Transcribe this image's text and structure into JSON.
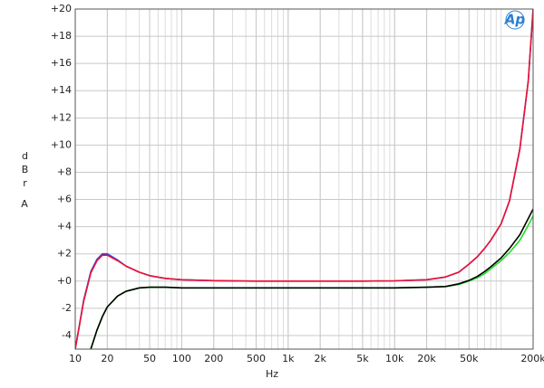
{
  "chart_data": {
    "type": "line",
    "xlabel": "Hz",
    "ylabel": "dBr",
    "ylabel_unit": "A",
    "logo": "Ap",
    "xscale": "log",
    "grid": true,
    "minor_grid": true,
    "xlim": [
      10,
      200000
    ],
    "ylim": [
      -5,
      20
    ],
    "xticks": [
      10,
      20,
      50,
      100,
      200,
      500,
      {
        "value": 1000,
        "label": "1k"
      },
      {
        "value": 2000,
        "label": "2k"
      },
      {
        "value": 5000,
        "label": "5k"
      },
      {
        "value": 10000,
        "label": "10k"
      },
      {
        "value": 20000,
        "label": "20k"
      },
      {
        "value": 50000,
        "label": "50k"
      },
      {
        "value": 200000,
        "label": "200k"
      }
    ],
    "yticks": [
      -4,
      -2,
      {
        "value": 0,
        "label": "+0"
      },
      {
        "value": 2,
        "label": "+2"
      },
      {
        "value": 4,
        "label": "+4"
      },
      {
        "value": 6,
        "label": "+6"
      },
      {
        "value": 8,
        "label": "+8"
      },
      {
        "value": 10,
        "label": "+10"
      },
      {
        "value": 12,
        "label": "+12"
      },
      {
        "value": 14,
        "label": "+14"
      },
      {
        "value": 16,
        "label": "+16"
      },
      {
        "value": 18,
        "label": "+18"
      },
      {
        "value": 20,
        "label": "+20"
      }
    ],
    "x": [
      10,
      12,
      14,
      16,
      18,
      20,
      25,
      30,
      40,
      50,
      70,
      100,
      200,
      500,
      1000,
      2000,
      5000,
      10000,
      20000,
      30000,
      40000,
      50000,
      60000,
      70000,
      80000,
      100000,
      120000,
      150000,
      180000,
      200000
    ],
    "series": [
      {
        "color": "#22dd22",
        "values": [
          null,
          null,
          -5,
          -3.6,
          -2.6,
          -1.9,
          -1.1,
          -0.75,
          -0.5,
          -0.45,
          -0.45,
          -0.5,
          -0.5,
          -0.5,
          -0.5,
          -0.5,
          -0.5,
          -0.5,
          -0.45,
          -0.4,
          -0.25,
          0.0,
          0.25,
          0.55,
          0.9,
          1.5,
          2.1,
          3.0,
          4.1,
          4.8
        ]
      },
      {
        "color": "#000000",
        "values": [
          null,
          null,
          -5,
          -3.6,
          -2.6,
          -1.9,
          -1.1,
          -0.75,
          -0.5,
          -0.45,
          -0.45,
          -0.5,
          -0.5,
          -0.5,
          -0.5,
          -0.5,
          -0.5,
          -0.5,
          -0.45,
          -0.4,
          -0.2,
          0.05,
          0.35,
          0.7,
          1.05,
          1.7,
          2.4,
          3.4,
          4.6,
          5.3
        ]
      },
      {
        "color": "#2244ee",
        "values": [
          -5,
          -1.4,
          0.7,
          1.6,
          2.0,
          2.0,
          1.55,
          1.1,
          0.65,
          0.4,
          0.2,
          0.1,
          0.03,
          0,
          0,
          0,
          0,
          0.02,
          0.1,
          0.3,
          0.65,
          1.25,
          1.8,
          2.4,
          3.0,
          4.2,
          5.9,
          9.7,
          14.7,
          20
        ]
      },
      {
        "color": "#ee1133",
        "values": [
          -5,
          -1.5,
          0.6,
          1.5,
          1.9,
          1.9,
          1.5,
          1.1,
          0.65,
          0.4,
          0.2,
          0.1,
          0.03,
          0,
          0,
          0,
          0,
          0.02,
          0.1,
          0.3,
          0.65,
          1.25,
          1.8,
          2.4,
          3.0,
          4.2,
          5.9,
          9.7,
          14.7,
          20
        ]
      }
    ]
  }
}
